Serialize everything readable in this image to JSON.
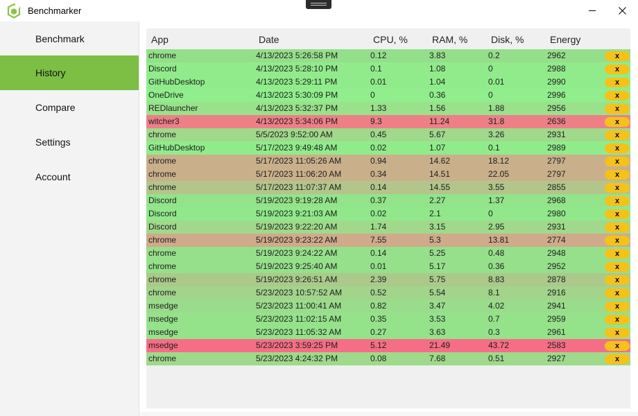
{
  "app": {
    "title": "Benchmarker",
    "icon": "benchmarker-logo-icon",
    "brand_color": "#7dbe45"
  },
  "window_controls": {
    "minimize_icon": "minimize-icon",
    "close_label": "✕"
  },
  "sidebar": {
    "items": [
      {
        "label": "Benchmark",
        "active": false
      },
      {
        "label": "History",
        "active": true
      },
      {
        "label": "Compare",
        "active": false
      },
      {
        "label": "Settings",
        "active": false
      },
      {
        "label": "Account",
        "active": false
      }
    ]
  },
  "table": {
    "columns": [
      "App",
      "Date",
      "CPU, %",
      "RAM, %",
      "Disk, %",
      "Energy"
    ],
    "delete_label": "x",
    "delete_color": "#f4c21a",
    "rows": [
      {
        "app": "chrome",
        "date": "4/13/2023 5:26:58 PM",
        "cpu": "0.12",
        "ram": "3.83",
        "disk": "0.2",
        "energy": "2962",
        "color": "#94df8a"
      },
      {
        "app": "Discord",
        "date": "4/13/2023 5:28:10 PM",
        "cpu": "0.1",
        "ram": "1.08",
        "disk": "0",
        "energy": "2988",
        "color": "#91eb8b"
      },
      {
        "app": "GitHubDesktop",
        "date": "4/13/2023 5:29:11 PM",
        "cpu": "0.01",
        "ram": "1.04",
        "disk": "0.01",
        "energy": "2990",
        "color": "#90ec8b"
      },
      {
        "app": "OneDrive",
        "date": "4/13/2023 5:30:09 PM",
        "cpu": "0",
        "ram": "0.36",
        "disk": "0",
        "energy": "2996",
        "color": "#90ee8c"
      },
      {
        "app": "REDlauncher",
        "date": "4/13/2023 5:32:37 PM",
        "cpu": "1.33",
        "ram": "1.56",
        "disk": "1.88",
        "energy": "2956",
        "color": "#99e18b"
      },
      {
        "app": "witcher3",
        "date": "4/13/2023 5:34:06 PM",
        "cpu": "9.3",
        "ram": "11.24",
        "disk": "31.8",
        "energy": "2636",
        "color": "#ee7f87"
      },
      {
        "app": "chrome",
        "date": "5/5/2023 9:52:00 AM",
        "cpu": "0.45",
        "ram": "5.67",
        "disk": "3.26",
        "energy": "2931",
        "color": "#a0d98b"
      },
      {
        "app": "GitHubDesktop",
        "date": "5/17/2023 9:49:48 AM",
        "cpu": "0.02",
        "ram": "1.07",
        "disk": "0.1",
        "energy": "2989",
        "color": "#90ec8b"
      },
      {
        "app": "chrome",
        "date": "5/17/2023 11:05:26 AM",
        "cpu": "0.94",
        "ram": "14.62",
        "disk": "18.12",
        "energy": "2797",
        "color": "#c9b08b"
      },
      {
        "app": "chrome",
        "date": "5/17/2023 11:06:20 AM",
        "cpu": "0.34",
        "ram": "14.51",
        "disk": "22.05",
        "energy": "2797",
        "color": "#c9b08b"
      },
      {
        "app": "chrome",
        "date": "5/17/2023 11:07:37 AM",
        "cpu": "0.14",
        "ram": "14.55",
        "disk": "3.55",
        "energy": "2855",
        "color": "#b3c58b"
      },
      {
        "app": "Discord",
        "date": "5/19/2023 9:19:28 AM",
        "cpu": "0.37",
        "ram": "2.27",
        "disk": "1.37",
        "energy": "2968",
        "color": "#93e38b"
      },
      {
        "app": "Discord",
        "date": "5/19/2023 9:21:03 AM",
        "cpu": "0.02",
        "ram": "2.1",
        "disk": "0",
        "energy": "2980",
        "color": "#91e88b"
      },
      {
        "app": "Discord",
        "date": "5/19/2023 9:22:20 AM",
        "cpu": "1.74",
        "ram": "3.15",
        "disk": "2.95",
        "energy": "2931",
        "color": "#a0d98b"
      },
      {
        "app": "chrome",
        "date": "5/19/2023 9:23:22 AM",
        "cpu": "7.55",
        "ram": "5.3",
        "disk": "13.81",
        "energy": "2774",
        "color": "#cfaa8b"
      },
      {
        "app": "chrome",
        "date": "5/19/2023 9:24:22 AM",
        "cpu": "0.14",
        "ram": "5.25",
        "disk": "0.48",
        "energy": "2948",
        "color": "#97e08b"
      },
      {
        "app": "chrome",
        "date": "5/19/2023 9:25:40 AM",
        "cpu": "0.01",
        "ram": "5.17",
        "disk": "0.36",
        "energy": "2952",
        "color": "#96e08b"
      },
      {
        "app": "chrome",
        "date": "5/19/2023 9:26:51 AM",
        "cpu": "2.39",
        "ram": "5.75",
        "disk": "8.83",
        "energy": "2878",
        "color": "#acc98b"
      },
      {
        "app": "chrome",
        "date": "5/23/2023 10:57:52 AM",
        "cpu": "0.52",
        "ram": "5.54",
        "disk": "8.1",
        "energy": "2916",
        "color": "#a2d48b"
      },
      {
        "app": "msedge",
        "date": "5/23/2023 11:00:41 AM",
        "cpu": "0.82",
        "ram": "3.47",
        "disk": "4.02",
        "energy": "2941",
        "color": "#99dc8b"
      },
      {
        "app": "msedge",
        "date": "5/23/2023 11:02:15 AM",
        "cpu": "0.35",
        "ram": "3.53",
        "disk": "0.7",
        "energy": "2959",
        "color": "#95e28b"
      },
      {
        "app": "msedge",
        "date": "5/23/2023 11:05:32 AM",
        "cpu": "0.27",
        "ram": "3.63",
        "disk": "0.3",
        "energy": "2961",
        "color": "#94e38b"
      },
      {
        "app": "msedge",
        "date": "5/23/2023 3:59:25 PM",
        "cpu": "5.12",
        "ram": "21.49",
        "disk": "43.72",
        "energy": "2583",
        "color": "#f56e86"
      },
      {
        "app": "chrome",
        "date": "5/23/2023 4:24:32 PM",
        "cpu": "0.08",
        "ram": "7.68",
        "disk": "0.51",
        "energy": "2927",
        "color": "#9fd98b"
      }
    ]
  }
}
